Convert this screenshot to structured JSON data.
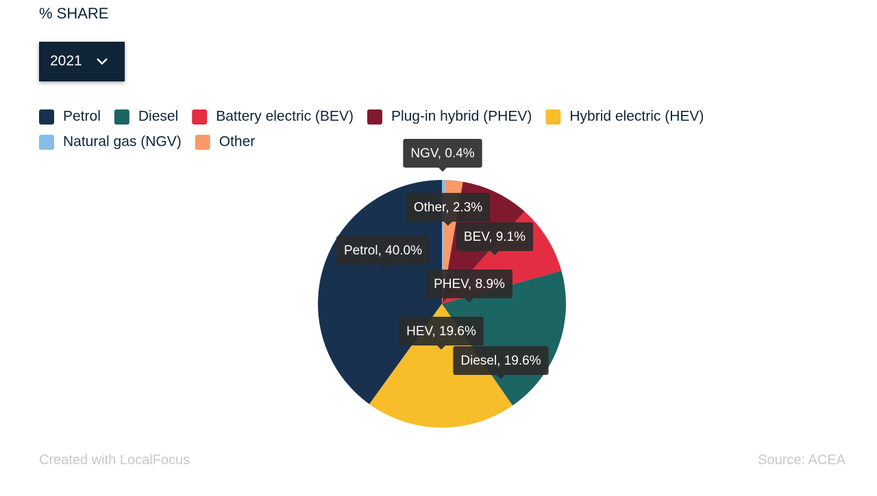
{
  "title": "% SHARE",
  "year_selector": "2021",
  "chart_data": {
    "type": "pie",
    "legend": [
      {
        "name": "Petrol",
        "color": "#18314f"
      },
      {
        "name": "Diesel",
        "color": "#1b6563"
      },
      {
        "name": "Battery electric (BEV)",
        "color": "#e42d42"
      },
      {
        "name": "Plug-in hybrid (PHEV)",
        "color": "#7f1a2e"
      },
      {
        "name": "Hybrid electric (HEV)",
        "color": "#f7bd2b"
      },
      {
        "name": "Natural gas (NGV)",
        "color": "#86bde8"
      },
      {
        "name": "Other",
        "color": "#f89a68"
      }
    ],
    "values": [
      40.0,
      19.6,
      19.6,
      9.1,
      8.9,
      2.3,
      0.4
    ],
    "value_labels": [
      "Petrol, 40.0%",
      "HEV, 19.6%",
      "Diesel, 19.6%",
      "BEV, 9.1%",
      "PHEV, 8.9%",
      "Other, 2.3%",
      "NGV, 0.4%"
    ],
    "colors": [
      "#18314f",
      "#f7bd2b",
      "#1b6563",
      "#e42d42",
      "#7f1a2e",
      "#f89a68",
      "#86bde8"
    ]
  },
  "credit": "Created with LocalFocus",
  "source": "Source:  ACEA"
}
